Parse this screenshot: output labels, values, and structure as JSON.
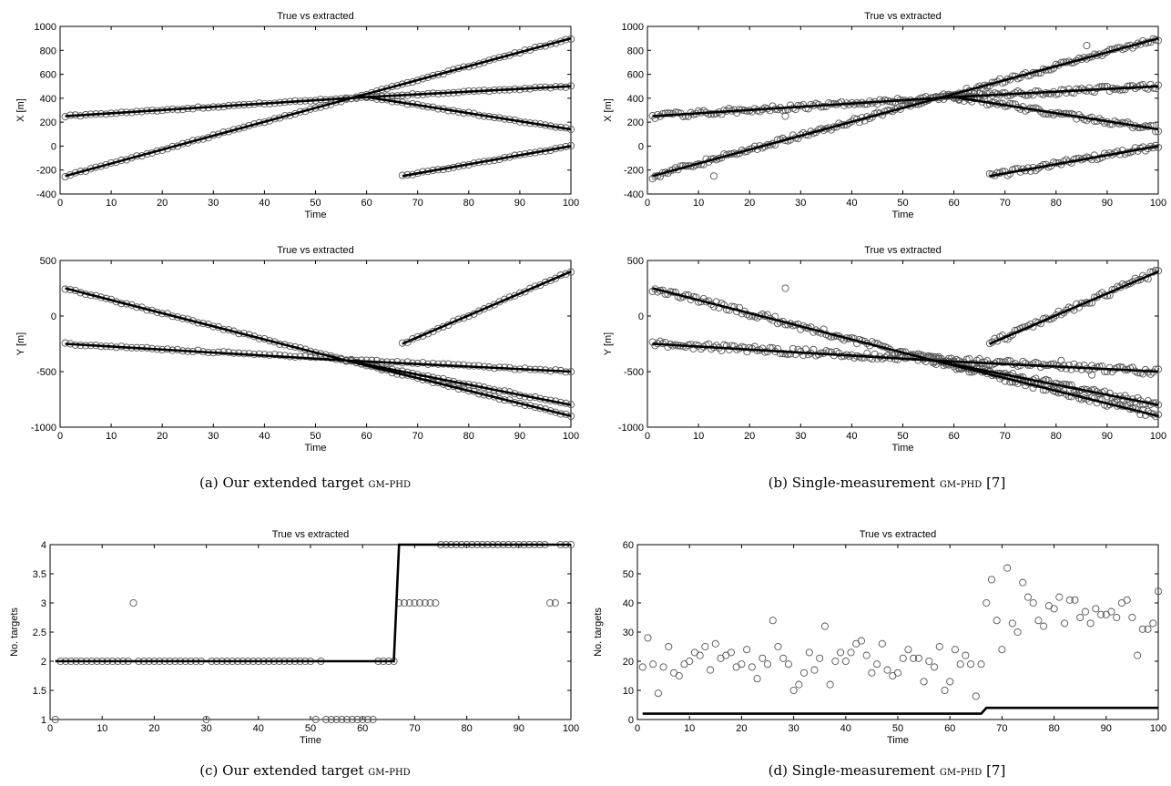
{
  "captions": {
    "a": {
      "label": "(a) Our extended target",
      "method": "gm-phd",
      "ref": ""
    },
    "b": {
      "label": "(b) Single-measurement",
      "method": "gm-phd",
      "ref": " [7]"
    },
    "c": {
      "label": "(c) Our extended target",
      "method": "gm-phd",
      "ref": ""
    },
    "d": {
      "label": "(d) Single-measurement",
      "method": "gm-phd",
      "ref": " [7]"
    }
  },
  "colors": {
    "line": "#000000",
    "marker": "#555555"
  },
  "chart_data": [
    {
      "id": "a_x",
      "type": "line",
      "title": "True vs extracted",
      "xlabel": "Time",
      "ylabel": "X [m]",
      "xlim": [
        0,
        100
      ],
      "ylim": [
        -400,
        1000
      ],
      "xticks": [
        0,
        10,
        20,
        30,
        40,
        50,
        60,
        70,
        80,
        90,
        100
      ],
      "yticks": [
        -400,
        -200,
        0,
        200,
        400,
        600,
        800,
        1000
      ],
      "true_tracks": [
        {
          "x": [
            1,
            100
          ],
          "y": [
            -250,
            900
          ]
        },
        {
          "x": [
            1,
            60,
            100
          ],
          "y": [
            250,
            410,
            500
          ]
        },
        {
          "x": [
            60,
            100
          ],
          "y": [
            410,
            140
          ]
        },
        {
          "x": [
            67,
            100
          ],
          "y": [
            -250,
            0
          ]
        }
      ],
      "markers": [
        {
          "x_start": 1,
          "x_end": 100,
          "y_start": -250,
          "y_end": 900,
          "step": 1,
          "noise": 6
        },
        {
          "x_start": 1,
          "x_end": 60,
          "y_start": 250,
          "y_end": 410,
          "step": 1,
          "noise": 6
        },
        {
          "x_start": 60,
          "x_end": 100,
          "y_start": 410,
          "y_end": 500,
          "step": 1,
          "noise": 6
        },
        {
          "x_start": 60,
          "x_end": 100,
          "y_start": 410,
          "y_end": 140,
          "step": 1,
          "noise": 6
        },
        {
          "x_start": 67,
          "x_end": 100,
          "y_start": -250,
          "y_end": 0,
          "step": 1,
          "noise": 6
        }
      ]
    },
    {
      "id": "b_x",
      "type": "line",
      "title": "True vs extracted",
      "xlabel": "Time",
      "ylabel": "X [m]",
      "xlim": [
        0,
        100
      ],
      "ylim": [
        -400,
        1000
      ],
      "xticks": [
        0,
        10,
        20,
        30,
        40,
        50,
        60,
        70,
        80,
        90,
        100
      ],
      "yticks": [
        -400,
        -200,
        0,
        200,
        400,
        600,
        800,
        1000
      ],
      "true_tracks": [
        {
          "x": [
            1,
            100
          ],
          "y": [
            -250,
            900
          ]
        },
        {
          "x": [
            1,
            60,
            100
          ],
          "y": [
            250,
            410,
            500
          ]
        },
        {
          "x": [
            60,
            100
          ],
          "y": [
            410,
            140
          ]
        },
        {
          "x": [
            67,
            100
          ],
          "y": [
            -250,
            0
          ]
        }
      ],
      "markers": [
        {
          "x_start": 1,
          "x_end": 100,
          "y_start": -250,
          "y_end": 900,
          "step": 0.5,
          "noise": 22
        },
        {
          "x_start": 1,
          "x_end": 60,
          "y_start": 250,
          "y_end": 410,
          "step": 0.5,
          "noise": 22
        },
        {
          "x_start": 60,
          "x_end": 100,
          "y_start": 410,
          "y_end": 500,
          "step": 0.5,
          "noise": 22
        },
        {
          "x_start": 60,
          "x_end": 100,
          "y_start": 410,
          "y_end": 140,
          "step": 0.5,
          "noise": 22
        },
        {
          "x_start": 67,
          "x_end": 100,
          "y_start": -250,
          "y_end": 0,
          "step": 0.5,
          "noise": 22
        }
      ],
      "outliers": [
        {
          "x": 13,
          "y": -250
        },
        {
          "x": 86,
          "y": 840
        },
        {
          "x": 27,
          "y": 250
        }
      ]
    },
    {
      "id": "a_y",
      "type": "line",
      "title": "True vs extracted",
      "xlabel": "Time",
      "ylabel": "Y [m]",
      "xlim": [
        0,
        100
      ],
      "ylim": [
        -1000,
        500
      ],
      "xticks": [
        0,
        10,
        20,
        30,
        40,
        50,
        60,
        70,
        80,
        90,
        100
      ],
      "yticks": [
        -1000,
        -500,
        0,
        500
      ],
      "true_tracks": [
        {
          "x": [
            1,
            56,
            100
          ],
          "y": [
            250,
            -400,
            -900
          ]
        },
        {
          "x": [
            1,
            56,
            100
          ],
          "y": [
            -250,
            -400,
            -500
          ]
        },
        {
          "x": [
            56,
            100
          ],
          "y": [
            -400,
            -800
          ]
        },
        {
          "x": [
            67,
            100
          ],
          "y": [
            -250,
            400
          ]
        }
      ],
      "markers": [
        {
          "x_start": 1,
          "x_end": 56,
          "y_start": 250,
          "y_end": -400,
          "step": 1,
          "noise": 8
        },
        {
          "x_start": 56,
          "x_end": 100,
          "y_start": -400,
          "y_end": -900,
          "step": 1,
          "noise": 8
        },
        {
          "x_start": 1,
          "x_end": 100,
          "y_start": -250,
          "y_end": -500,
          "step": 1,
          "noise": 8
        },
        {
          "x_start": 56,
          "x_end": 100,
          "y_start": -400,
          "y_end": -800,
          "step": 1,
          "noise": 8
        },
        {
          "x_start": 67,
          "x_end": 100,
          "y_start": -250,
          "y_end": 400,
          "step": 1,
          "noise": 8
        }
      ]
    },
    {
      "id": "b_y",
      "type": "line",
      "title": "True vs extracted",
      "xlabel": "Time",
      "ylabel": "Y [m]",
      "xlim": [
        0,
        100
      ],
      "ylim": [
        -1000,
        500
      ],
      "xticks": [
        0,
        10,
        20,
        30,
        40,
        50,
        60,
        70,
        80,
        90,
        100
      ],
      "yticks": [
        -1000,
        -500,
        0,
        500
      ],
      "true_tracks": [
        {
          "x": [
            1,
            56,
            100
          ],
          "y": [
            250,
            -400,
            -900
          ]
        },
        {
          "x": [
            1,
            56,
            100
          ],
          "y": [
            -250,
            -400,
            -500
          ]
        },
        {
          "x": [
            56,
            100
          ],
          "y": [
            -400,
            -800
          ]
        },
        {
          "x": [
            67,
            100
          ],
          "y": [
            -250,
            400
          ]
        }
      ],
      "markers": [
        {
          "x_start": 1,
          "x_end": 56,
          "y_start": 250,
          "y_end": -400,
          "step": 0.5,
          "noise": 28
        },
        {
          "x_start": 56,
          "x_end": 100,
          "y_start": -400,
          "y_end": -900,
          "step": 0.5,
          "noise": 28
        },
        {
          "x_start": 1,
          "x_end": 100,
          "y_start": -250,
          "y_end": -500,
          "step": 0.5,
          "noise": 28
        },
        {
          "x_start": 56,
          "x_end": 100,
          "y_start": -400,
          "y_end": -800,
          "step": 0.5,
          "noise": 28
        },
        {
          "x_start": 67,
          "x_end": 100,
          "y_start": -250,
          "y_end": 400,
          "step": 0.5,
          "noise": 28
        }
      ],
      "outliers": [
        {
          "x": 27,
          "y": 250
        },
        {
          "x": 81,
          "y": -400
        },
        {
          "x": 87,
          "y": -530
        }
      ]
    },
    {
      "id": "c_n",
      "type": "scatter",
      "title": "True vs extracted",
      "xlabel": "Time",
      "ylabel": "No. targets",
      "xlim": [
        0,
        100
      ],
      "ylim": [
        1,
        4
      ],
      "xticks": [
        0,
        10,
        20,
        30,
        40,
        50,
        60,
        70,
        80,
        90,
        100
      ],
      "yticks": [
        1,
        1.5,
        2,
        2.5,
        3,
        3.5,
        4
      ],
      "true_tracks": [
        {
          "x": [
            1,
            66,
            67,
            100
          ],
          "y": [
            2,
            2,
            4,
            4
          ]
        }
      ],
      "points": {
        "x": [
          1,
          2,
          3,
          4,
          5,
          6,
          7,
          8,
          9,
          10,
          11,
          12,
          13,
          14,
          15,
          16,
          17,
          18,
          19,
          20,
          21,
          22,
          23,
          24,
          25,
          26,
          27,
          28,
          29,
          30,
          31,
          32,
          33,
          34,
          35,
          36,
          37,
          38,
          39,
          40,
          41,
          42,
          43,
          44,
          45,
          46,
          47,
          48,
          49,
          50,
          51,
          52,
          53,
          54,
          55,
          56,
          57,
          58,
          59,
          60,
          61,
          62,
          63,
          64,
          65,
          66,
          67,
          68,
          69,
          70,
          71,
          72,
          73,
          74,
          75,
          76,
          77,
          78,
          79,
          80,
          81,
          82,
          83,
          84,
          85,
          86,
          87,
          88,
          89,
          90,
          91,
          92,
          93,
          94,
          95,
          96,
          97,
          98,
          99,
          100
        ],
        "y": [
          1,
          2,
          2,
          2,
          2,
          2,
          2,
          2,
          2,
          2,
          2,
          2,
          2,
          2,
          2,
          3,
          2,
          2,
          2,
          2,
          2,
          2,
          2,
          2,
          2,
          2,
          2,
          2,
          2,
          1,
          2,
          2,
          2,
          2,
          2,
          2,
          2,
          2,
          2,
          2,
          2,
          2,
          2,
          2,
          2,
          2,
          2,
          2,
          2,
          2,
          1,
          2,
          1,
          1,
          1,
          1,
          1,
          1,
          1,
          1,
          1,
          1,
          2,
          2,
          2,
          2,
          3,
          3,
          3,
          3,
          3,
          3,
          3,
          3,
          4,
          4,
          4,
          4,
          4,
          4,
          4,
          4,
          4,
          4,
          4,
          4,
          4,
          4,
          4,
          4,
          4,
          4,
          4,
          4,
          4,
          3,
          3,
          4,
          4,
          4
        ]
      }
    },
    {
      "id": "d_n",
      "type": "scatter",
      "title": "True vs extracted",
      "xlabel": "Time",
      "ylabel": "No. targets",
      "xlim": [
        0,
        100
      ],
      "ylim": [
        0,
        60
      ],
      "xticks": [
        0,
        10,
        20,
        30,
        40,
        50,
        60,
        70,
        80,
        90,
        100
      ],
      "yticks": [
        0,
        10,
        20,
        30,
        40,
        50,
        60
      ],
      "true_tracks": [
        {
          "x": [
            1,
            66,
            67,
            100
          ],
          "y": [
            2,
            2,
            4,
            4
          ]
        }
      ],
      "points": {
        "x": [
          1,
          2,
          3,
          4,
          5,
          6,
          7,
          8,
          9,
          10,
          11,
          12,
          13,
          14,
          15,
          16,
          17,
          18,
          19,
          20,
          21,
          22,
          23,
          24,
          25,
          26,
          27,
          28,
          29,
          30,
          31,
          32,
          33,
          34,
          35,
          36,
          37,
          38,
          39,
          40,
          41,
          42,
          43,
          44,
          45,
          46,
          47,
          48,
          49,
          50,
          51,
          52,
          53,
          54,
          55,
          56,
          57,
          58,
          59,
          60,
          61,
          62,
          63,
          64,
          65,
          66,
          67,
          68,
          69,
          70,
          71,
          72,
          73,
          74,
          75,
          76,
          77,
          78,
          79,
          80,
          81,
          82,
          83,
          84,
          85,
          86,
          87,
          88,
          89,
          90,
          91,
          92,
          93,
          94,
          95,
          96,
          97,
          98,
          99,
          100
        ],
        "y": [
          18,
          28,
          19,
          9,
          18,
          25,
          16,
          15,
          19,
          20,
          23,
          22,
          25,
          17,
          26,
          21,
          22,
          23,
          18,
          19,
          24,
          18,
          14,
          21,
          19,
          34,
          25,
          21,
          19,
          10,
          12,
          16,
          23,
          17,
          21,
          32,
          12,
          20,
          23,
          20,
          23,
          26,
          27,
          22,
          16,
          19,
          26,
          17,
          15,
          16,
          21,
          24,
          21,
          21,
          13,
          20,
          18,
          25,
          10,
          13,
          24,
          19,
          22,
          19,
          8,
          19,
          40,
          48,
          34,
          24,
          52,
          33,
          30,
          47,
          42,
          40,
          34,
          32,
          39,
          38,
          42,
          33,
          41,
          41,
          35,
          37,
          33,
          38,
          36,
          36,
          37,
          35,
          40,
          41,
          35,
          22,
          31,
          31,
          33,
          44
        ]
      }
    }
  ]
}
